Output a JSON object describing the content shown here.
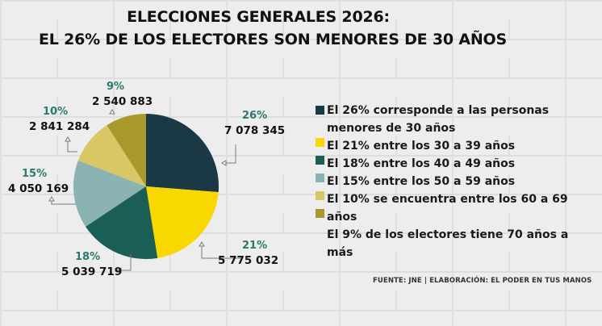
{
  "title": {
    "line1": "ELECCIONES GENERALES 2026:",
    "line2": "EL 26% DE LOS ELECTORES SON MENORES DE 30 AÑOS"
  },
  "chart_data": {
    "type": "pie",
    "title": "ELECCIONES GENERALES 2026: EL 26% DE LOS ELECTORES SON MENORES DE 30 AÑOS",
    "start": "top",
    "direction": "clockwise",
    "slices": [
      {
        "label": "Menores de 30 años",
        "percent": 26,
        "pct_label": "26%",
        "value": 7078345,
        "value_label": "7 078 345",
        "color": "#1b3845"
      },
      {
        "label": "30 a 39 años",
        "percent": 21,
        "pct_label": "21%",
        "value": 5775032,
        "value_label": "5 775 032",
        "color": "#f8d800"
      },
      {
        "label": "40 a 49 años",
        "percent": 18,
        "pct_label": "18%",
        "value": 5039719,
        "value_label": "5 039 719",
        "color": "#1a5e56"
      },
      {
        "label": "50 a 59 años",
        "percent": 15,
        "pct_label": "15%",
        "value": 4050169,
        "value_label": "4 050 169",
        "color": "#8ab3b1"
      },
      {
        "label": "60 a 69 años",
        "percent": 10,
        "pct_label": "10%",
        "value": 2841284,
        "value_label": "2 841 284",
        "color": "#d9c766"
      },
      {
        "label": "70 años a más",
        "percent": 9,
        "pct_label": "9%",
        "value": 2540883,
        "value_label": "2 540 883",
        "color": "#a89a2a"
      }
    ],
    "legend_position": "right"
  },
  "legend": {
    "items": [
      {
        "text": "El 26% corresponde a las personas menores de 30 años",
        "color": "#1b3845"
      },
      {
        "text": "El 21% entre los 30 a 39 años",
        "color": "#f8d800"
      },
      {
        "text": "El 18% entre los 40 a 49 años",
        "color": "#1a5e56"
      },
      {
        "text": "El 15% entre los 50 a 59 años",
        "color": "#8ab3b1"
      },
      {
        "text": "El 10% se encuentra entre los 60 a 69 años",
        "color": "#d9c766"
      },
      {
        "text": "El 9% de los electores tiene 70 años a más",
        "color": "#a89a2a"
      }
    ]
  },
  "source": "FUENTE: JNE | ELABORACIÓN: EL PODER EN TUS MANOS",
  "colors": {
    "pct_label": "#2b7a6e",
    "text": "#111111"
  }
}
